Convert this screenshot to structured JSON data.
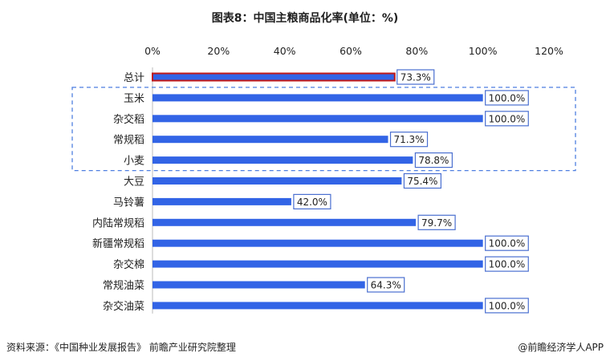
{
  "chart_data": {
    "type": "bar",
    "orientation": "horizontal",
    "title": "图表8：中国主粮商品化率(单位：%)",
    "categories": [
      "总计",
      "玉米",
      "杂交稻",
      "常规稻",
      "小麦",
      "大豆",
      "马铃薯",
      "内陆常规稻",
      "新疆常规稻",
      "杂交棉",
      "常规油菜",
      "杂交油菜"
    ],
    "values": [
      73.3,
      100.0,
      100.0,
      71.3,
      78.8,
      75.4,
      42.0,
      79.7,
      100.0,
      100.0,
      64.3,
      100.0
    ],
    "value_labels": [
      "73.3%",
      "100.0%",
      "100.0%",
      "71.3%",
      "78.8%",
      "75.4%",
      "42.0%",
      "79.7%",
      "100.0%",
      "100.0%",
      "64.3%",
      "100.0%"
    ],
    "xlim": [
      0,
      120
    ],
    "ticks": [
      0,
      20,
      40,
      60,
      80,
      100,
      120
    ],
    "tick_labels": [
      "0%",
      "20%",
      "40%",
      "60%",
      "80%",
      "100%",
      "120%"
    ],
    "axis_position": "top",
    "grid": false,
    "legend": "none",
    "highlighted_category": "总计",
    "dashed_group": [
      "玉米",
      "杂交稻",
      "常规稻",
      "小麦"
    ],
    "colors": {
      "bar": "#3264e6",
      "highlight_border": "#c01818",
      "label_border": "#4a6fd0",
      "dashed_box": "#4f7fe0"
    }
  },
  "footer": {
    "source": "资料来源：《中国种业发展报告》 前瞻产业研究院整理",
    "credit": "@前瞻经济学人APP"
  }
}
